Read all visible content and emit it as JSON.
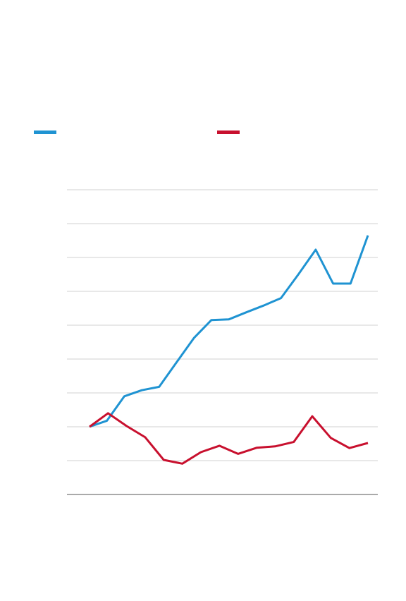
{
  "chart_data": {
    "type": "line",
    "title": "",
    "xlabel": "",
    "ylabel": "",
    "ylim": [
      0,
      9
    ],
    "grid": true,
    "legend_placement": "top",
    "series": [
      {
        "color": "#1f93d2",
        "values": [
          2.0,
          2.18,
          2.9,
          3.08,
          3.18,
          3.9,
          4.62,
          5.15,
          5.17,
          5.38,
          5.58,
          5.8,
          6.5,
          7.23,
          6.23,
          6.23,
          7.65
        ]
      },
      {
        "color": "#c8102e",
        "values": [
          2.0,
          2.4,
          2.02,
          1.69,
          1.02,
          0.91,
          1.25,
          1.44,
          1.2,
          1.38,
          1.42,
          1.55,
          2.31,
          1.67,
          1.37,
          1.52
        ]
      }
    ]
  },
  "legend": {
    "items": [
      {
        "label": "",
        "color": "#1f93d2"
      },
      {
        "label": "",
        "color": "#c8102e"
      }
    ]
  }
}
